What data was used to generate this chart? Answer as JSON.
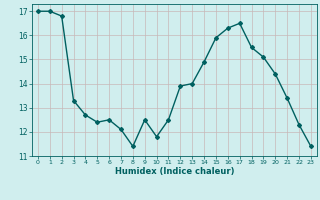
{
  "x": [
    0,
    1,
    2,
    3,
    4,
    5,
    6,
    7,
    8,
    9,
    10,
    11,
    12,
    13,
    14,
    15,
    16,
    17,
    18,
    19,
    20,
    21,
    22,
    23
  ],
  "y": [
    17.0,
    17.0,
    16.8,
    13.3,
    12.7,
    12.4,
    12.5,
    12.1,
    11.4,
    12.5,
    11.8,
    12.5,
    13.9,
    14.0,
    14.9,
    15.9,
    16.3,
    16.5,
    15.5,
    15.1,
    14.4,
    13.4,
    12.3,
    11.4
  ],
  "xlabel": "Humidex (Indice chaleur)",
  "xlim": [
    -0.5,
    23.5
  ],
  "ylim": [
    11,
    17.3
  ],
  "yticks": [
    11,
    12,
    13,
    14,
    15,
    16,
    17
  ],
  "xticks": [
    0,
    1,
    2,
    3,
    4,
    5,
    6,
    7,
    8,
    9,
    10,
    11,
    12,
    13,
    14,
    15,
    16,
    17,
    18,
    19,
    20,
    21,
    22,
    23
  ],
  "line_color": "#006060",
  "marker": "D",
  "marker_size": 2,
  "bg_color": "#d0eeee",
  "grid_color": "#c8b8b8",
  "xlabel_color": "#006060",
  "tick_color": "#006060",
  "line_width": 1.0
}
